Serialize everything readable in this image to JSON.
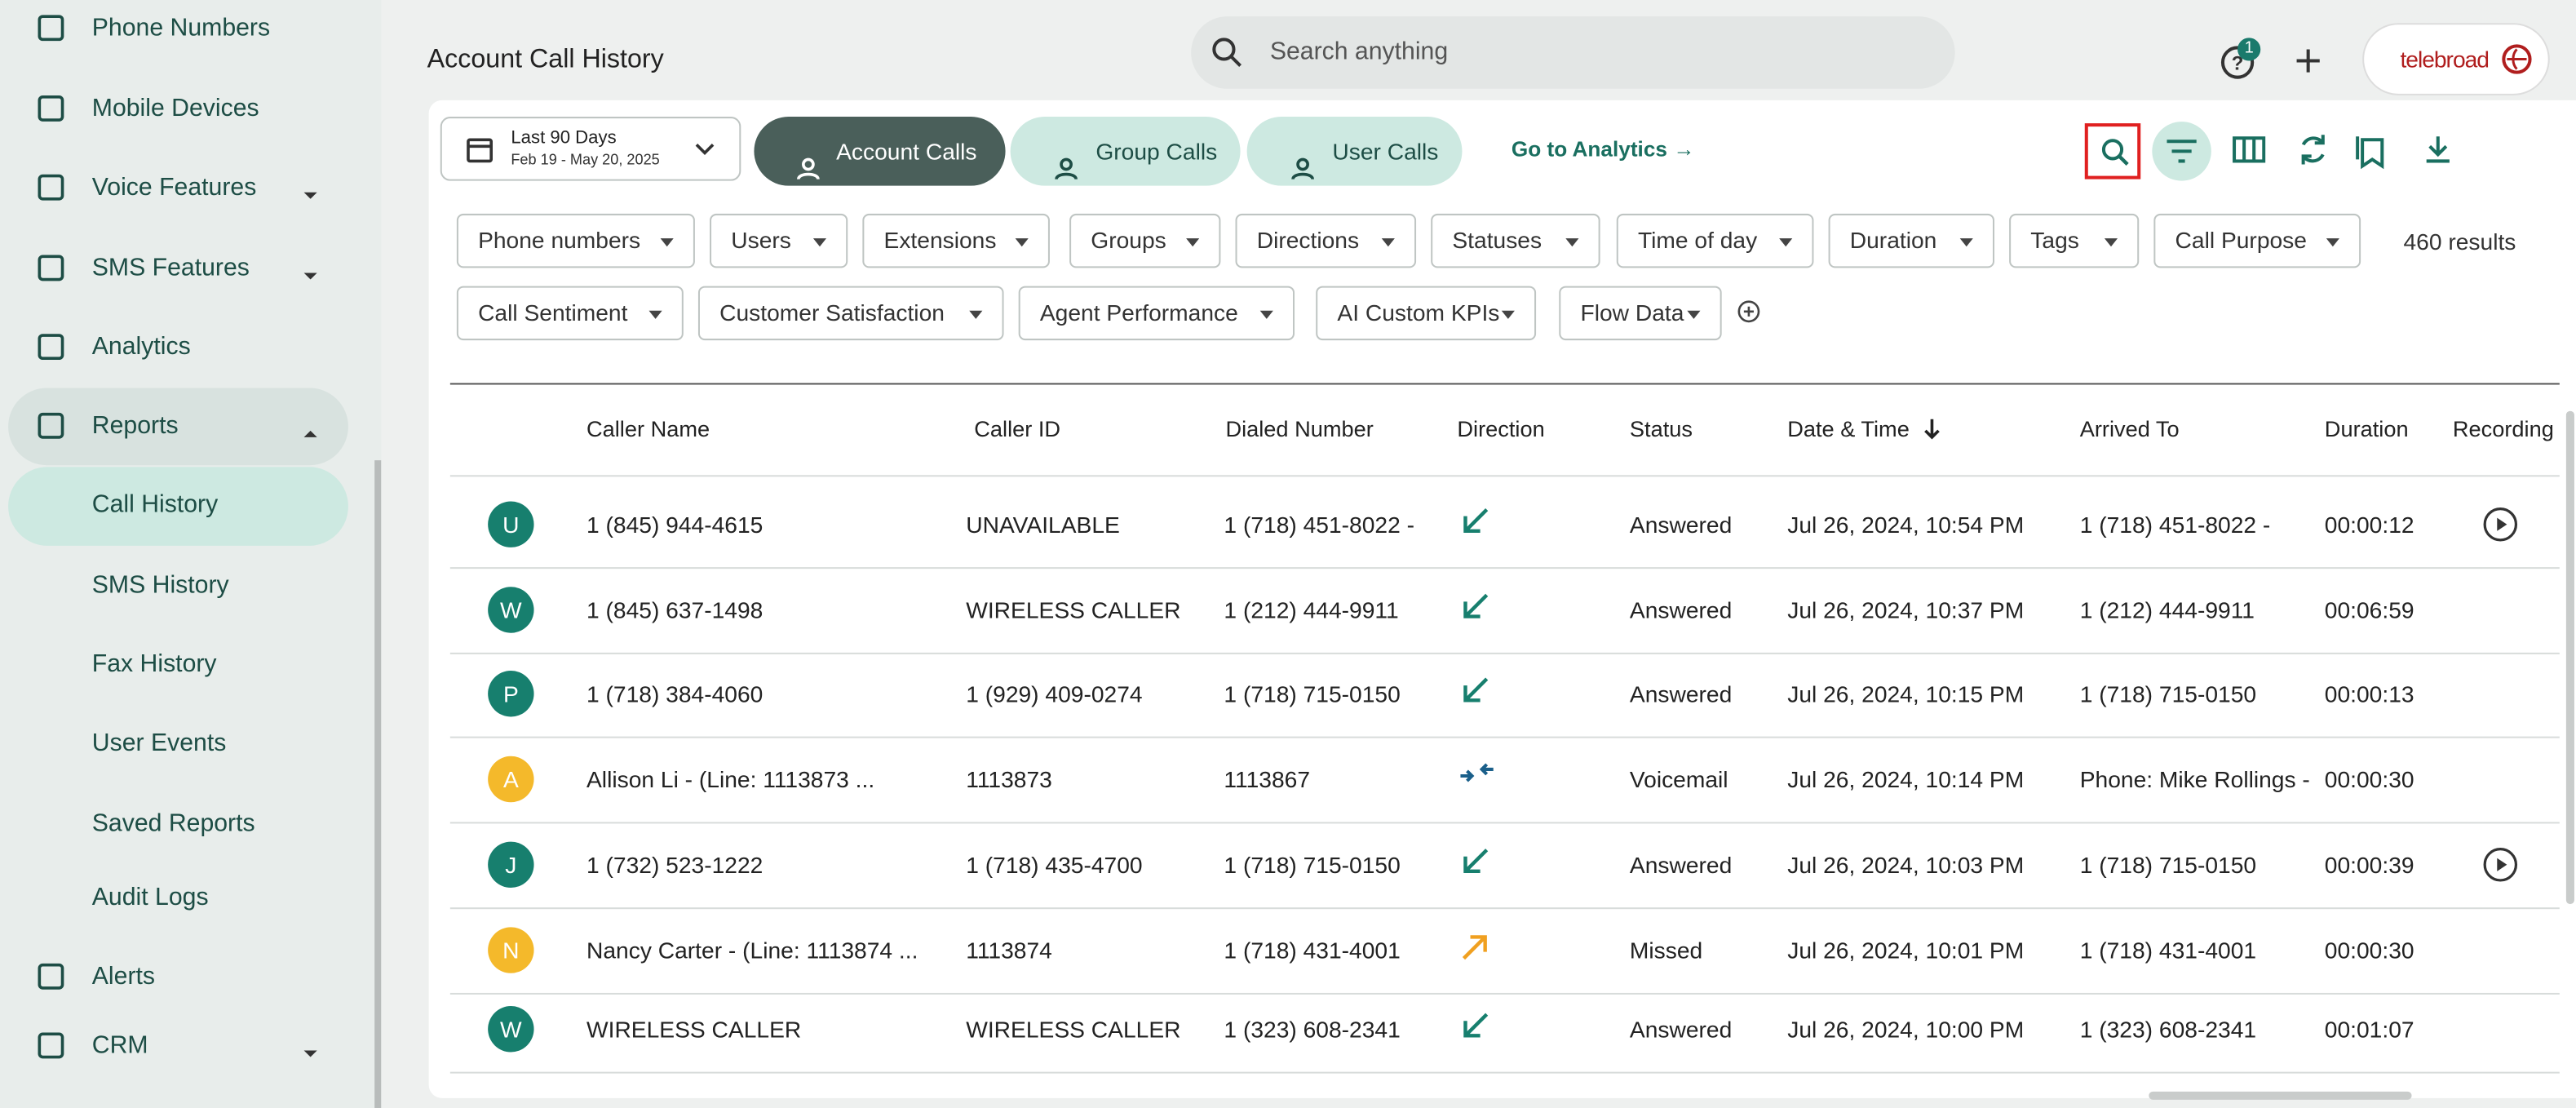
{
  "sidebar": {
    "items": [
      "Phone Numbers",
      "Mobile Devices",
      "Voice Features",
      "SMS Features",
      "Analytics",
      "Reports",
      "Call History",
      "SMS History",
      "Fax History",
      "User Events",
      "Saved Reports",
      "Audit Logs",
      "Alerts",
      "CRM"
    ]
  },
  "header": {
    "title": "Account Call History",
    "search_placeholder": "Search anything",
    "badge": "1",
    "logo": "telebroad"
  },
  "toolbar": {
    "date_range": {
      "label": "Last 90 Days",
      "range": "Feb 19 - May 20, 2025"
    },
    "tabs": [
      "Account Calls",
      "Group Calls",
      "User Calls"
    ],
    "analytics_link": "Go to Analytics"
  },
  "filters": {
    "items": [
      "Phone numbers",
      "Users",
      "Extensions",
      "Groups",
      "Directions",
      "Statuses",
      "Time of day",
      "Duration",
      "Tags",
      "Call Purpose",
      "Call Sentiment",
      "Customer Satisfaction",
      "Agent Performance",
      "AI Custom KPIs",
      "Flow Data"
    ],
    "results": "460 results"
  },
  "table": {
    "columns": [
      "Caller Name",
      "Caller ID",
      "Dialed Number",
      "Direction",
      "Status",
      "Date & Time",
      "Arrived To",
      "Duration",
      "Recording"
    ],
    "rows": [
      {
        "avatar": "U",
        "caller_name": "1 (845) 944-4615",
        "caller_id": "UNAVAILABLE",
        "dialed": "1 (718) 451-8022 -",
        "status": "Answered",
        "date": "Jul 26, 2024, 10:54 PM",
        "arrived": "1 (718) 451-8022 -",
        "duration": "00:00:12",
        "recording": true
      },
      {
        "avatar": "W",
        "caller_name": "1 (845) 637-1498",
        "caller_id": "WIRELESS CALLER",
        "dialed": "1 (212) 444-9911",
        "status": "Answered",
        "date": "Jul 26, 2024, 10:37 PM",
        "arrived": "1 (212) 444-9911",
        "duration": "00:06:59",
        "recording": false
      },
      {
        "avatar": "P",
        "caller_name": "1 (718) 384-4060",
        "caller_id": "1 (929) 409-0274",
        "dialed": "1 (718) 715-0150",
        "status": "Answered",
        "date": "Jul 26, 2024, 10:15 PM",
        "arrived": "1 (718) 715-0150",
        "duration": "00:00:13",
        "recording": false
      },
      {
        "avatar": "A",
        "caller_name": "Allison Li - (Line: 1113873 ...",
        "caller_id": "1113873",
        "dialed": "1113867",
        "status": "Voicemail",
        "date": "Jul 26, 2024, 10:14 PM",
        "arrived": "Phone: Mike Rollings -",
        "duration": "00:00:30",
        "recording": false
      },
      {
        "avatar": "J",
        "caller_name": "1 (732) 523-1222",
        "caller_id": "1 (718) 435-4700",
        "dialed": "1 (718) 715-0150",
        "status": "Answered",
        "date": "Jul 26, 2024, 10:03 PM",
        "arrived": "1 (718) 715-0150",
        "duration": "00:00:39",
        "recording": true
      },
      {
        "avatar": "N",
        "caller_name": "Nancy Carter - (Line: 1113874 ...",
        "caller_id": "1113874",
        "dialed": "1 (718) 431-4001",
        "status": "Missed",
        "date": "Jul 26, 2024, 10:01 PM",
        "arrived": "1 (718) 431-4001",
        "duration": "00:00:30",
        "recording": false
      },
      {
        "avatar": "W",
        "caller_name": "WIRELESS CALLER",
        "caller_id": "WIRELESS CALLER",
        "dialed": "1 (323) 608-2341",
        "status": "Answered",
        "date": "Jul 26, 2024, 10:00 PM",
        "arrived": "1 (323) 608-2341",
        "duration": "00:01:07",
        "recording": false
      }
    ]
  }
}
